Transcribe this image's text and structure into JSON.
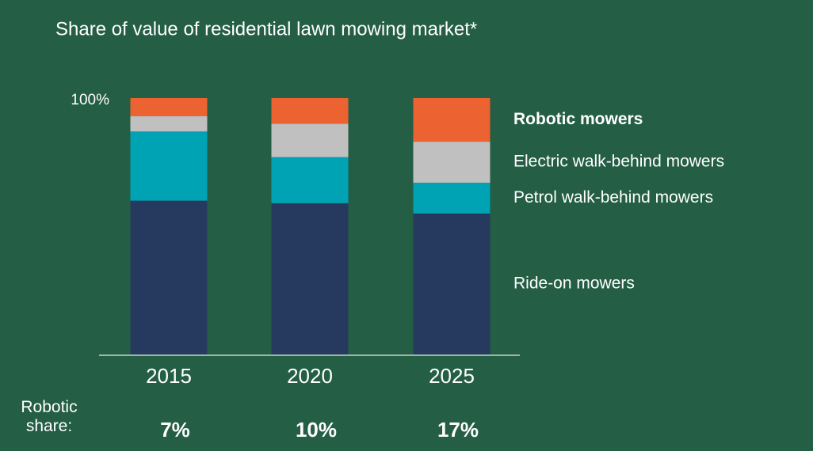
{
  "chart_data": {
    "type": "stacked_bar",
    "title": "Share of value of residential lawn mowing market*",
    "categories": [
      "2015",
      "2020",
      "2025"
    ],
    "series": [
      {
        "name": "Ride-on mowers",
        "color": "#263a60",
        "values": [
          60,
          59,
          55
        ]
      },
      {
        "name": "Petrol walk-behind mowers",
        "color": "#00a3b4",
        "values": [
          27,
          18,
          12
        ]
      },
      {
        "name": "Electric walk-behind mowers",
        "color": "#c0c0c0",
        "values": [
          6,
          13,
          16
        ]
      },
      {
        "name": "Robotic mowers",
        "color": "#ec6331",
        "values": [
          7,
          10,
          17
        ],
        "value_labels": [
          "7%",
          "10%",
          "17%"
        ]
      }
    ],
    "value_labels_title": "Robotic share:",
    "ylim": [
      0,
      100
    ],
    "yticks": [
      {
        "value": 100,
        "label": "100%"
      }
    ],
    "background": "#245e45"
  }
}
